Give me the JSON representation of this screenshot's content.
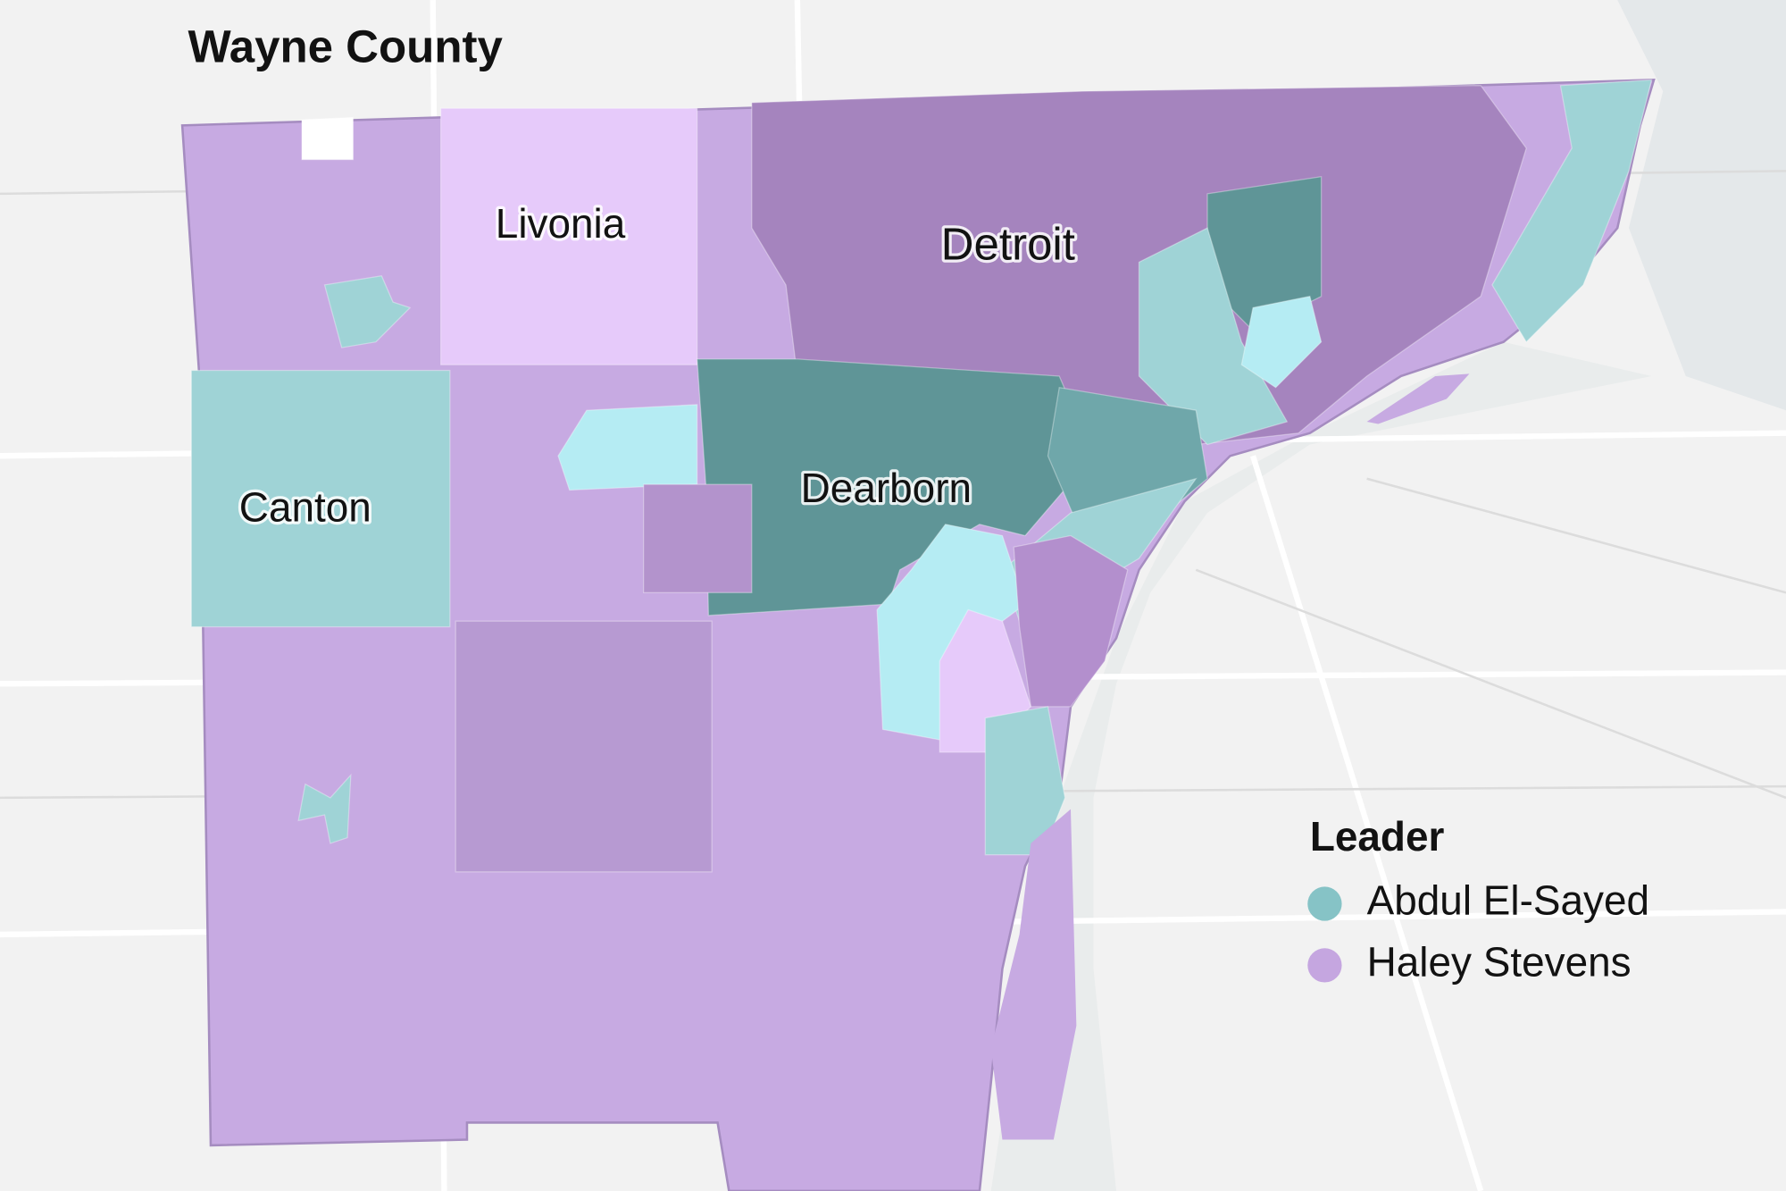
{
  "title": "Wayne County",
  "places": [
    "Livonia",
    "Detroit",
    "Canton",
    "Dearborn"
  ],
  "legend": {
    "title": "Leader",
    "items": [
      {
        "name": "Abdul El-Sayed",
        "color": "#86c3c6"
      },
      {
        "name": "Haley Stevens",
        "color": "#c5a6e0"
      }
    ]
  }
}
